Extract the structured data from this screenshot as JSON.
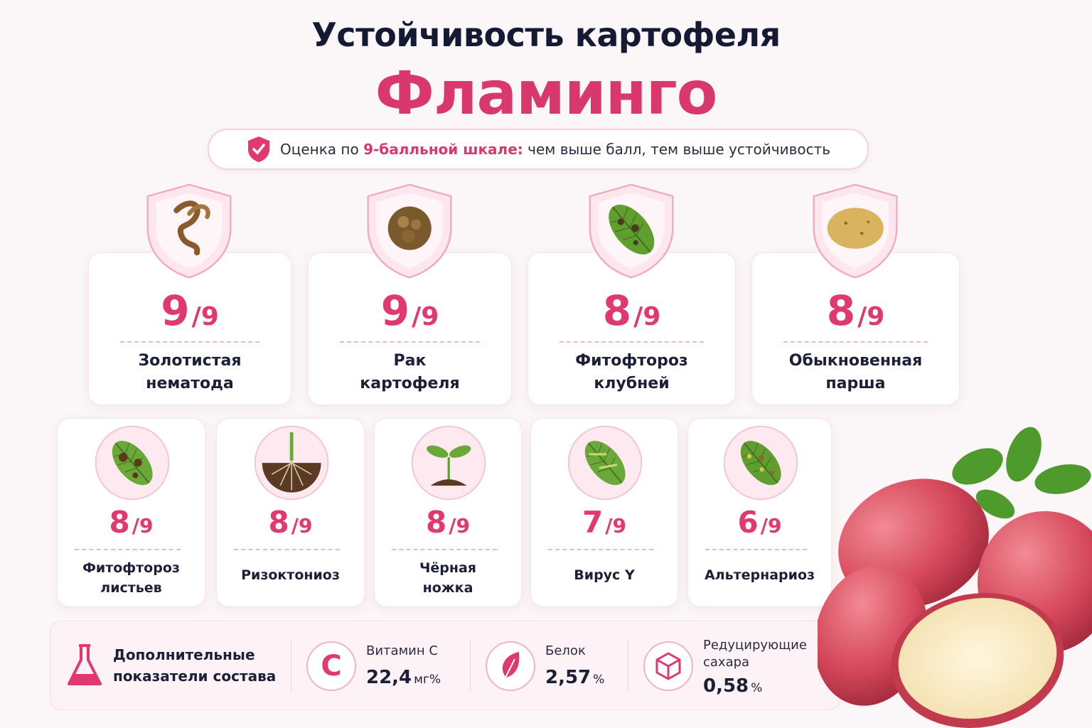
{
  "header": {
    "title": "Устойчивость картофеля",
    "brand": "Фламинго"
  },
  "note": {
    "prefix": "Оценка по ",
    "highlight": "9-балльной шкале:",
    "suffix": " чем выше балл, тем выше устойчивость"
  },
  "diseases": [
    {
      "score": 9,
      "scale": "/9",
      "label_lines": [
        "Золотистая",
        "нематода"
      ]
    },
    {
      "score": 9,
      "scale": "/9",
      "label_lines": [
        "Рак",
        "картофеля"
      ]
    },
    {
      "score": 8,
      "scale": "/9",
      "label_lines": [
        "Фитофтороз",
        "клубней"
      ]
    },
    {
      "score": 8,
      "scale": "/9",
      "label_lines": [
        "Обыкновенная",
        "парша"
      ]
    },
    {
      "score": 8,
      "scale": "/9",
      "label_lines": [
        "Фитофтороз",
        "листьев"
      ]
    },
    {
      "score": 8,
      "scale": "/9",
      "label_lines": [
        "Ризоктониоз"
      ]
    },
    {
      "score": 8,
      "scale": "/9",
      "label_lines": [
        "Чёрная",
        "ножка"
      ]
    },
    {
      "score": 7,
      "scale": "/9",
      "label_lines": [
        "Вирус Y"
      ]
    },
    {
      "score": 6,
      "scale": "/9",
      "label_lines": [
        "Альтернариоз"
      ]
    }
  ],
  "composition": {
    "title_lines": [
      "Дополнительные",
      "показатели состава"
    ],
    "items": [
      {
        "icon_text": "C",
        "name_lines": [
          "Витамин С"
        ],
        "value": "22,4",
        "unit": "мг%"
      },
      {
        "name_lines": [
          "Белок"
        ],
        "value": "2,57",
        "unit": "%"
      },
      {
        "name_lines": [
          "Редуцирующие",
          "сахара"
        ],
        "value": "0,58",
        "unit": "%"
      }
    ]
  }
}
